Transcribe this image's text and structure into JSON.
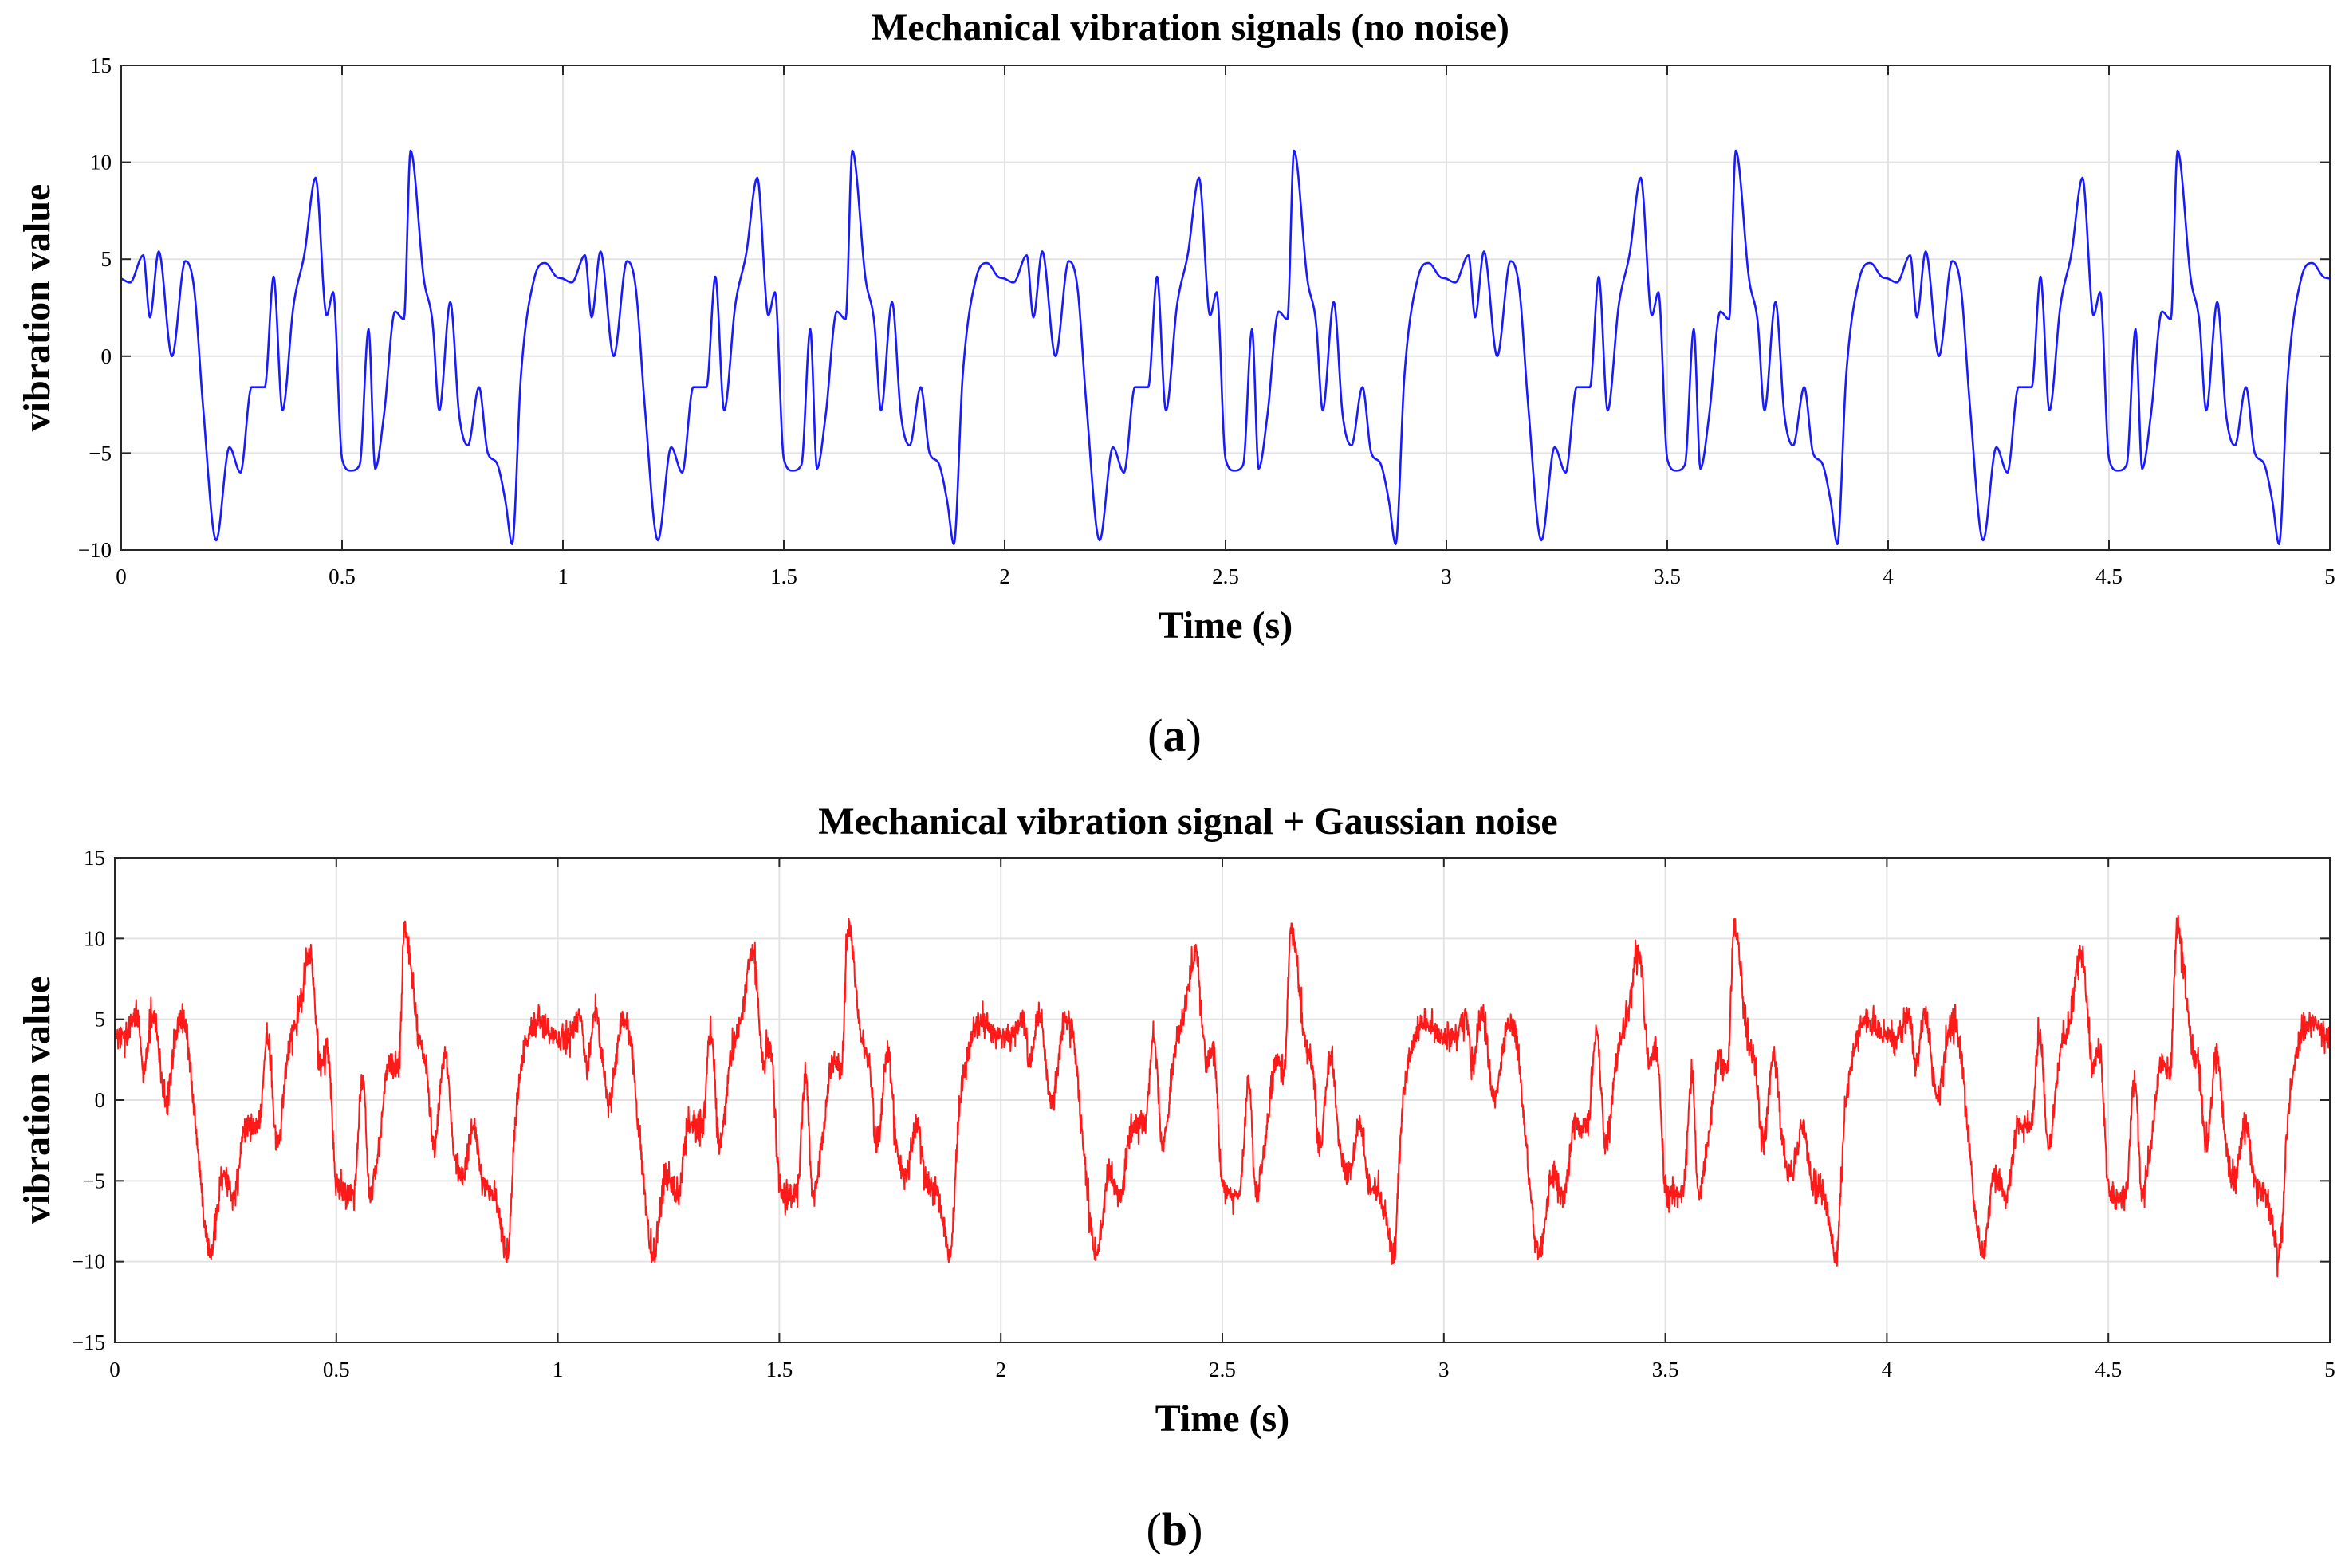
{
  "chart_data": [
    {
      "type": "line",
      "panel_label": "a",
      "title": "Mechanical vibration signals (no noise)",
      "xlabel": "Time (s)",
      "ylabel": "vibration value",
      "xlim": [
        0,
        5
      ],
      "ylim": [
        -10,
        15
      ],
      "xticks": [
        0,
        0.5,
        1,
        1.5,
        2,
        2.5,
        3,
        3.5,
        4,
        4.5,
        5
      ],
      "xtick_labels": [
        "0",
        "0.5",
        "1",
        "1.5",
        "2",
        "2.5",
        "3",
        "3.5",
        "4",
        "4.5",
        "5"
      ],
      "yticks": [
        -10,
        -5,
        0,
        5,
        10,
        15
      ],
      "ytick_labels": [
        "−10",
        "−5",
        "0",
        "5",
        "10",
        "15"
      ],
      "grid": true,
      "noise": false,
      "color": "#1a1aff",
      "series": [
        {
          "name": "vibration signal",
          "period": 1.0,
          "start_time": 0,
          "end_time": 5,
          "period_keypoints_t": [
            0.0,
            0.02,
            0.05,
            0.065,
            0.085,
            0.115,
            0.145,
            0.165,
            0.185,
            0.215,
            0.245,
            0.27,
            0.295,
            0.325,
            0.345,
            0.365,
            0.39,
            0.415,
            0.44,
            0.465,
            0.48,
            0.5,
            0.52,
            0.54,
            0.56,
            0.575,
            0.595,
            0.62,
            0.64,
            0.655,
            0.685,
            0.705,
            0.72,
            0.745,
            0.765,
            0.785,
            0.81,
            0.83,
            0.85,
            0.87,
            0.885,
            0.905,
            0.935,
            0.96,
            0.985,
            1.0
          ],
          "period_keypoints_v": [
            4.0,
            3.8,
            5.2,
            2.0,
            5.4,
            0.0,
            4.9,
            3.5,
            -2.5,
            -9.5,
            -4.7,
            -6.0,
            -1.6,
            -1.6,
            4.1,
            -2.8,
            2.6,
            5.3,
            9.2,
            2.1,
            3.3,
            -5.3,
            -5.9,
            -5.6,
            1.4,
            -5.8,
            -3.0,
            2.3,
            1.9,
            10.6,
            4.0,
            1.7,
            -2.8,
            2.8,
            -3.0,
            -4.6,
            -1.6,
            -5.0,
            -5.5,
            -7.5,
            -9.7,
            -1.0,
            4.0,
            4.8,
            4.1,
            4.0
          ]
        }
      ]
    },
    {
      "type": "line",
      "panel_label": "b",
      "title": "Mechanical vibration signal + Gaussian noise",
      "xlabel": "Time (s)",
      "ylabel": "vibration value",
      "xlim": [
        0,
        5
      ],
      "ylim": [
        -15,
        15
      ],
      "xticks": [
        0,
        0.5,
        1,
        1.5,
        2,
        2.5,
        3,
        3.5,
        4,
        4.5,
        5
      ],
      "xtick_labels": [
        "0",
        "0.5",
        "1",
        "1.5",
        "2",
        "2.5",
        "3",
        "3.5",
        "4",
        "4.5",
        "5"
      ],
      "yticks": [
        -15,
        -10,
        -5,
        0,
        5,
        10,
        15
      ],
      "ytick_labels": [
        "−15",
        "−10",
        "−5",
        "0",
        "5",
        "10",
        "15"
      ],
      "grid": true,
      "noise": true,
      "noise_std": 0.45,
      "color": "#ff1a1a",
      "series": [
        {
          "name": "vibration signal + Gaussian noise",
          "period": 1.0,
          "start_time": 0,
          "end_time": 5,
          "period_keypoints_t": [
            0.0,
            0.02,
            0.05,
            0.065,
            0.085,
            0.115,
            0.145,
            0.165,
            0.185,
            0.215,
            0.245,
            0.27,
            0.295,
            0.325,
            0.345,
            0.365,
            0.39,
            0.415,
            0.44,
            0.465,
            0.48,
            0.5,
            0.52,
            0.54,
            0.56,
            0.575,
            0.595,
            0.62,
            0.64,
            0.655,
            0.685,
            0.705,
            0.72,
            0.745,
            0.765,
            0.785,
            0.81,
            0.83,
            0.85,
            0.87,
            0.885,
            0.905,
            0.935,
            0.96,
            0.985,
            1.0
          ],
          "period_keypoints_v": [
            4.0,
            3.8,
            5.2,
            2.0,
            5.4,
            0.0,
            4.9,
            3.5,
            -2.5,
            -9.5,
            -4.7,
            -6.0,
            -1.6,
            -1.6,
            4.1,
            -2.8,
            2.6,
            5.3,
            9.2,
            2.1,
            3.3,
            -5.3,
            -5.9,
            -5.6,
            1.4,
            -5.8,
            -3.0,
            2.3,
            1.9,
            10.6,
            4.0,
            1.7,
            -2.8,
            2.8,
            -3.0,
            -4.6,
            -1.6,
            -5.0,
            -5.5,
            -7.5,
            -9.7,
            -1.0,
            4.0,
            4.8,
            4.1,
            4.0
          ]
        }
      ]
    }
  ]
}
